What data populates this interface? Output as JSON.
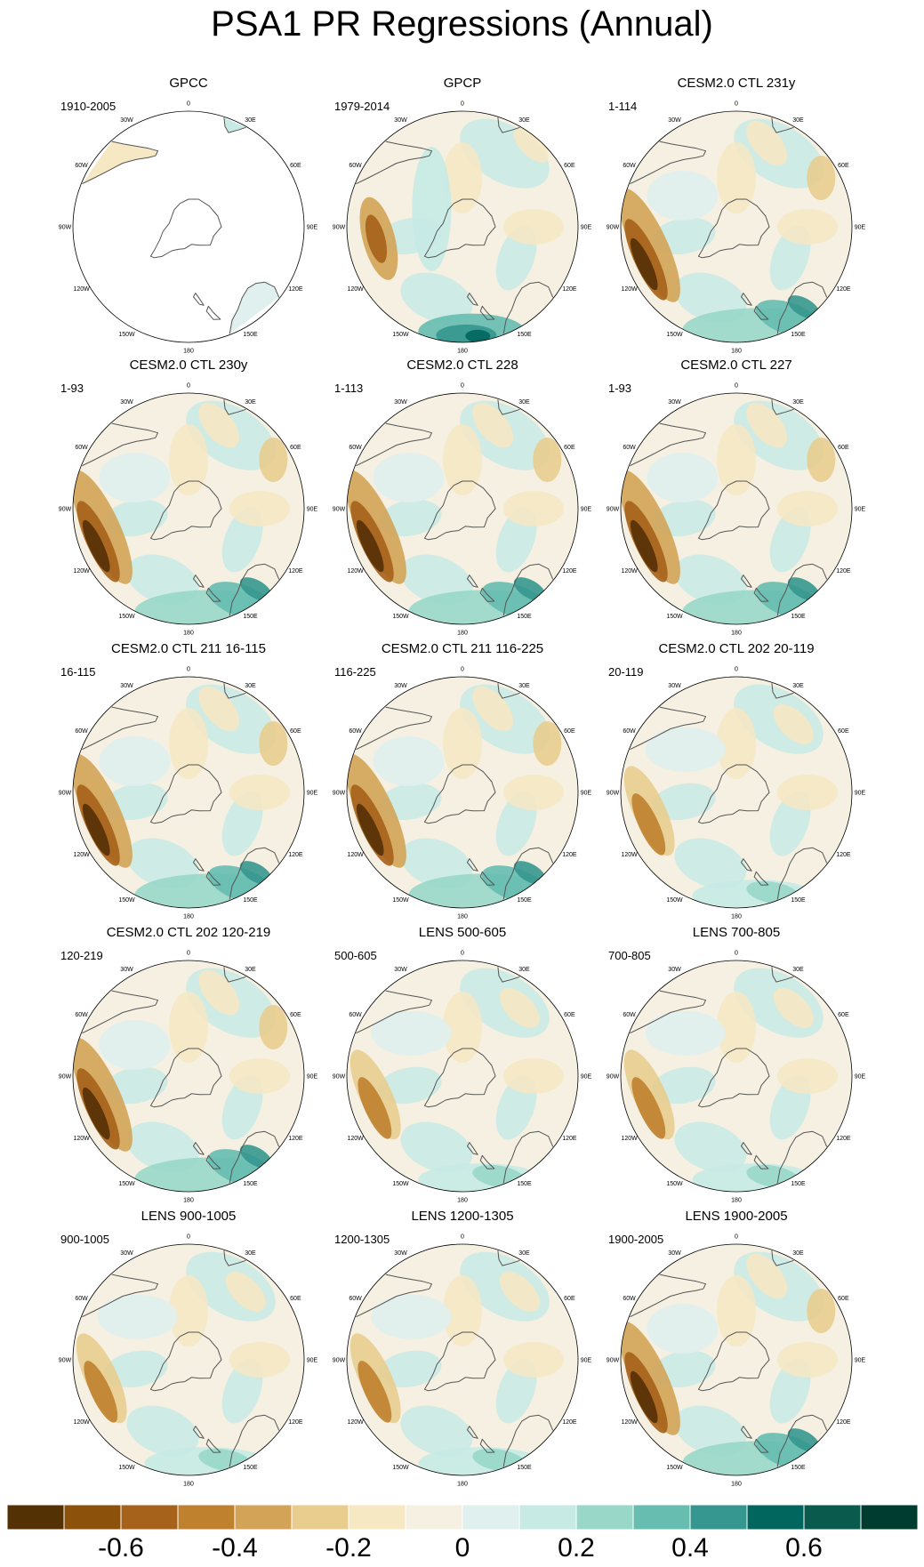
{
  "title": "PSA1 PR Regressions (Annual)",
  "longitude_labels": [
    "0",
    "30E",
    "60E",
    "90E",
    "120E",
    "150E",
    "180",
    "150W",
    "120W",
    "90W",
    "60W",
    "30W"
  ],
  "panels": [
    {
      "title": "GPCC",
      "period": "1910-2005",
      "coverage": "land-only"
    },
    {
      "title": "GPCP",
      "period": "1979-2014",
      "coverage": "global"
    },
    {
      "title": "CESM2.0 CTL 231y",
      "period": "1-114",
      "coverage": "global"
    },
    {
      "title": "CESM2.0 CTL 230y",
      "period": "1-93",
      "coverage": "global"
    },
    {
      "title": "CESM2.0 CTL 228",
      "period": "1-113",
      "coverage": "global"
    },
    {
      "title": "CESM2.0 CTL 227",
      "period": "1-93",
      "coverage": "global"
    },
    {
      "title": "CESM2.0 CTL 211 16-115",
      "period": "16-115",
      "coverage": "global"
    },
    {
      "title": "CESM2.0 CTL 211 116-225",
      "period": "116-225",
      "coverage": "global"
    },
    {
      "title": "CESM2.0 CTL 202 20-119",
      "period": "20-119",
      "coverage": "global"
    },
    {
      "title": "CESM2.0 CTL 202 120-219",
      "period": "120-219",
      "coverage": "global"
    },
    {
      "title": "LENS 500-605",
      "period": "500-605",
      "coverage": "global"
    },
    {
      "title": "LENS 700-805",
      "period": "700-805",
      "coverage": "global"
    },
    {
      "title": "LENS 900-1005",
      "period": "900-1005",
      "coverage": "global"
    },
    {
      "title": "LENS 1200-1305",
      "period": "1200-1305",
      "coverage": "global"
    },
    {
      "title": "LENS 1900-2005",
      "period": "1900-2005",
      "coverage": "global"
    }
  ],
  "colorbar": {
    "colors": [
      "#543005",
      "#8c510a",
      "#a6611a",
      "#bf812d",
      "#d3a458",
      "#e8cd8f",
      "#f6e8c3",
      "#f5f0e1",
      "#e0f0ee",
      "#c7eae5",
      "#99d8c9",
      "#66bdb0",
      "#35978f",
      "#01665e",
      "#0b5a4e",
      "#003c30"
    ],
    "tick_labels": [
      "-0.6",
      "-0.4",
      "-0.2",
      "0",
      "0.2",
      "0.4",
      "0.6"
    ]
  }
}
